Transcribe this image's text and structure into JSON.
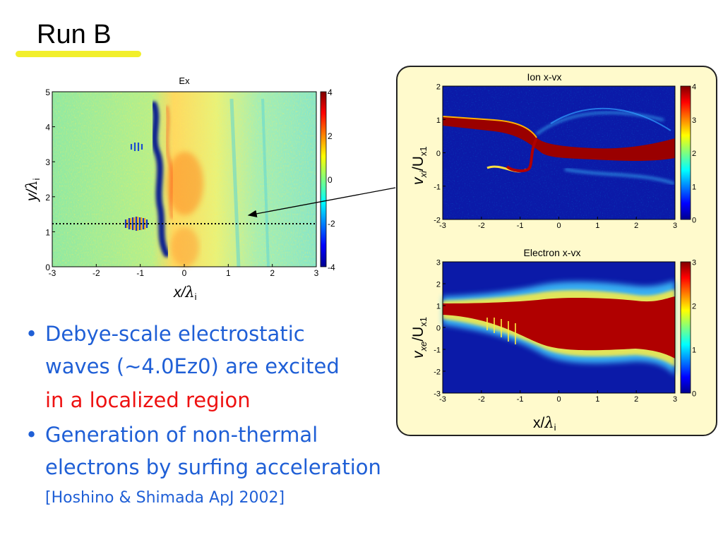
{
  "slide": {
    "title": "Run B",
    "bullets": [
      {
        "lines": [
          "Debye-scale electrostatic",
          "waves (∼4.0Ez0) are excited"
        ],
        "highlight_line": "in a localized region"
      },
      {
        "lines": [
          "Generation of non-thermal",
          "electrons by surfing acceleration"
        ],
        "reference": "[Hoshino & Shimada ApJ 2002]"
      }
    ],
    "bullet_symbol": "•",
    "colors": {
      "accent": "#1f5fd6",
      "emphasis": "#ee1111",
      "title_underline": "#f2ef2b",
      "panel_bg": "#fffacc"
    }
  },
  "chart_data": [
    {
      "type": "heatmap",
      "title": "Ex",
      "xlabel": "x/λi",
      "ylabel": "y/λi",
      "xlim": [
        -3,
        3
      ],
      "ylim": [
        0,
        5
      ],
      "x_ticks": [
        "-3",
        "-2",
        "-1",
        "0",
        "1",
        "2",
        "3"
      ],
      "y_ticks": [
        "0",
        "1",
        "2",
        "3",
        "4",
        "5"
      ],
      "colorbar_ticks": [
        "4",
        "2",
        "0",
        "-2",
        "-4"
      ],
      "colorbar_range": [
        -4,
        4
      ],
      "dotted_line_y": 1.25
    },
    {
      "type": "heatmap",
      "title": "Ion x-vx",
      "xlabel": "",
      "ylabel": "vxi/Ux1",
      "xlim": [
        -3,
        3
      ],
      "ylim": [
        -2,
        2
      ],
      "x_ticks": [
        "-3",
        "-2",
        "-1",
        "0",
        "1",
        "2",
        "3"
      ],
      "y_ticks": [
        "2",
        "1",
        "0",
        "-1",
        "-2"
      ],
      "colorbar_ticks": [
        "4",
        "3",
        "2",
        "1",
        "0"
      ],
      "colorbar_range": [
        0,
        4
      ]
    },
    {
      "type": "heatmap",
      "title": "Electron x-vx",
      "xlabel": "x/λi",
      "ylabel": "vxe/Ux1",
      "xlim": [
        -3,
        3
      ],
      "ylim": [
        -3,
        3
      ],
      "x_ticks": [
        "-3",
        "-2",
        "-1",
        "0",
        "1",
        "2",
        "3"
      ],
      "y_ticks": [
        "3",
        "2",
        "1",
        "0",
        "-1",
        "-2",
        "-3"
      ],
      "colorbar_ticks": [
        "3",
        "2",
        "1",
        "0"
      ],
      "colorbar_range": [
        0,
        3
      ]
    }
  ],
  "labels": {
    "ex_xlabel_main": "x/",
    "ex_xlabel_sym": "λ",
    "ex_xlabel_sub": "i",
    "ex_ylabel_main": "y/",
    "ex_ylabel_sym": "λ",
    "ex_ylabel_sub": "i",
    "ion_ylabel_v": "v",
    "ion_ylabel_sub1": "xi",
    "ion_ylabel_u": "/U",
    "ion_ylabel_sub2": "x1",
    "ele_ylabel_v": "v",
    "ele_ylabel_sub1": "xe",
    "ele_ylabel_u": "/U",
    "ele_ylabel_sub2": "x1",
    "panel_xlabel_main": "x/",
    "panel_xlabel_sym": "λ",
    "panel_xlabel_sub": "i"
  }
}
